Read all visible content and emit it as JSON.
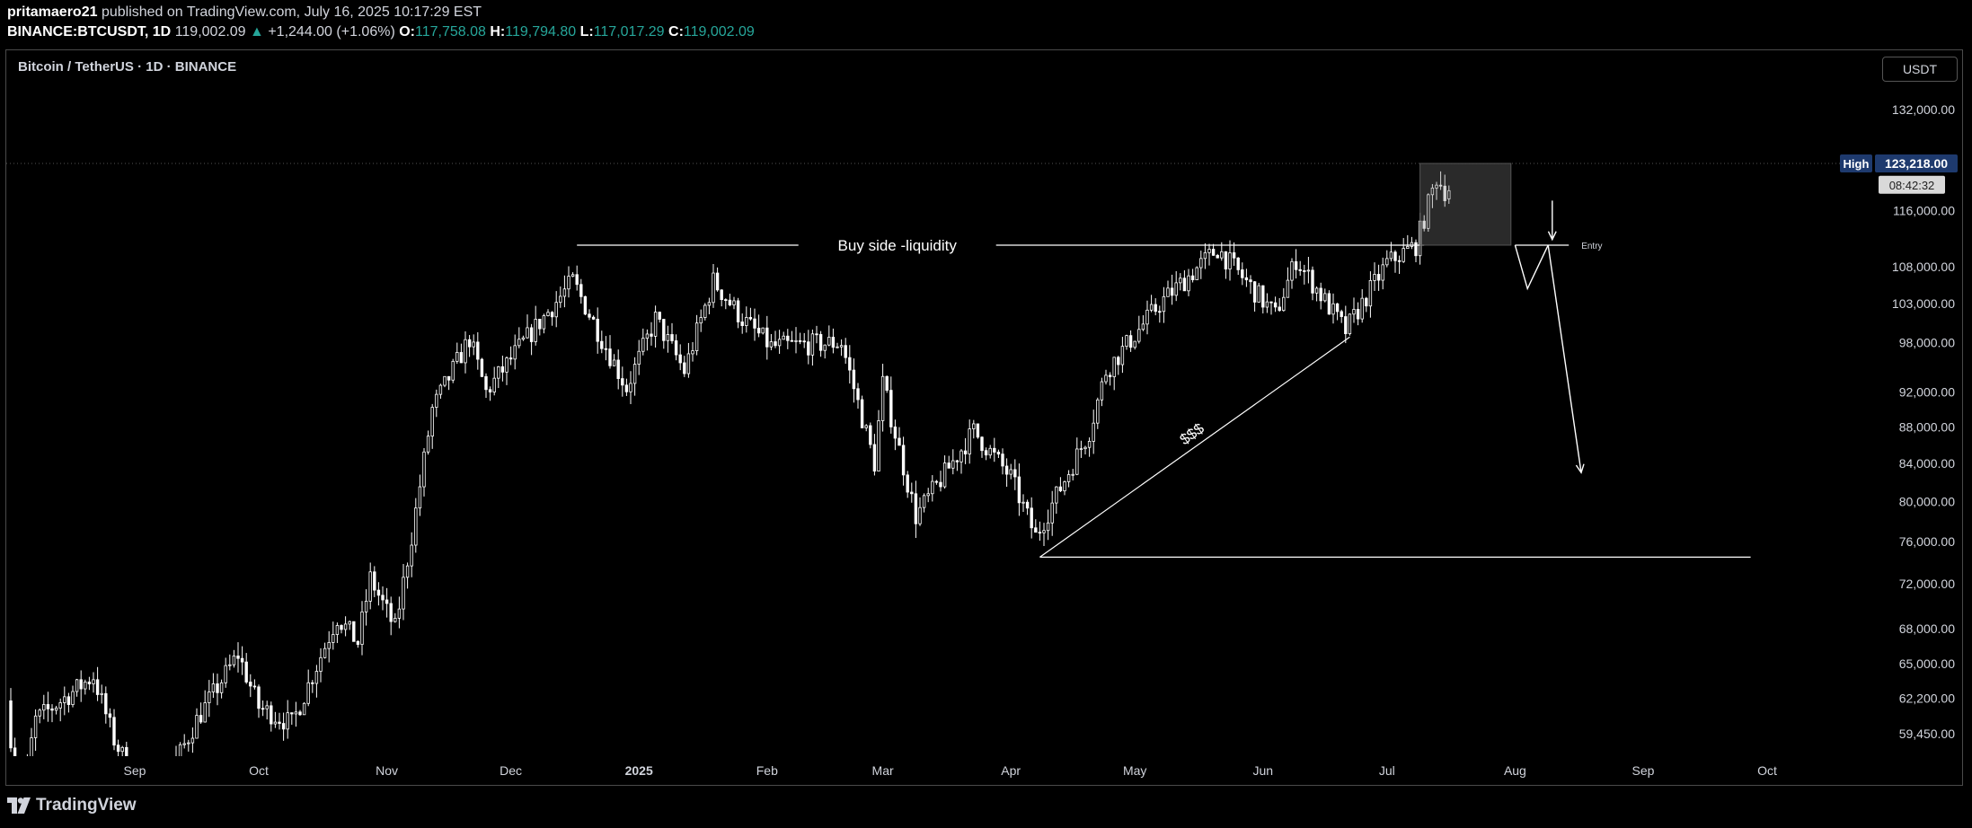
{
  "header": {
    "author": "pritamaero21",
    "published": " published on TradingView.com, July 16, 2025 10:17:29 EST",
    "symbol": "BINANCE:BTCUSDT, 1D",
    "last": "119,002.09",
    "change": "+1,244.00 (+1.06%)",
    "o_label": "O:",
    "o": "117,758.08",
    "h_label": "H:",
    "h": "119,794.80",
    "l_label": "L:",
    "l": "117,017.29",
    "c_label": "C:",
    "c": "119,002.09"
  },
  "symbol_title": "Bitcoin / TetherUS · 1D · BINANCE",
  "currency_button": "USDT",
  "footer": {
    "brand": "TradingView"
  },
  "colors": {
    "background": "#000000",
    "candle": "#ffffff",
    "up": "#26a69a",
    "badge_high": "#1e3a6e",
    "annotation": "#ffffff"
  },
  "chart_data": {
    "type": "candlestick",
    "scale": "log",
    "yticks": [
      132000,
      116000,
      108000,
      103000,
      98000,
      92000,
      88000,
      84000,
      80000,
      76000,
      72000,
      68000,
      65000,
      62200,
      59450
    ],
    "yticks_labels": [
      "132,000.00",
      "116,000.00",
      "108,000.00",
      "103,000.00",
      "98,000.00",
      "92,000.00",
      "88,000.00",
      "84,000.00",
      "80,000.00",
      "76,000.00",
      "72,000.00",
      "68,000.00",
      "65,000.00",
      "62,200.00",
      "59,450.00"
    ],
    "xticks": [
      {
        "label": "Sep",
        "date": "2024-09-01"
      },
      {
        "label": "Oct",
        "date": "2024-10-01"
      },
      {
        "label": "Nov",
        "date": "2024-11-01"
      },
      {
        "label": "Dec",
        "date": "2024-12-01"
      },
      {
        "label": "2025",
        "date": "2025-01-01",
        "bold": true
      },
      {
        "label": "Feb",
        "date": "2025-02-01"
      },
      {
        "label": "Mar",
        "date": "2025-03-01"
      },
      {
        "label": "Apr",
        "date": "2025-04-01"
      },
      {
        "label": "May",
        "date": "2025-05-01"
      },
      {
        "label": "Jun",
        "date": "2025-06-01"
      },
      {
        "label": "Jul",
        "date": "2025-07-01"
      },
      {
        "label": "Aug",
        "date": "2025-08-01"
      },
      {
        "label": "Sep",
        "date": "2025-09-01"
      },
      {
        "label": "Oct",
        "date": "2025-10-01"
      }
    ],
    "anchors": [
      [
        "2024-08-02",
        62000
      ],
      [
        "2024-08-05",
        54000
      ],
      [
        "2024-08-09",
        60500
      ],
      [
        "2024-08-23",
        64000
      ],
      [
        "2024-08-28",
        59000
      ],
      [
        "2024-09-06",
        53800
      ],
      [
        "2024-09-17",
        60500
      ],
      [
        "2024-09-27",
        65800
      ],
      [
        "2024-10-02",
        61500
      ],
      [
        "2024-10-10",
        60200
      ],
      [
        "2024-10-21",
        69000
      ],
      [
        "2024-10-26",
        66800
      ],
      [
        "2024-10-29",
        72500
      ],
      [
        "2024-11-04",
        68000
      ],
      [
        "2024-11-08",
        76500
      ],
      [
        "2024-11-13",
        90000
      ],
      [
        "2024-11-22",
        98500
      ],
      [
        "2024-11-26",
        92000
      ],
      [
        "2024-12-05",
        98000
      ],
      [
        "2024-12-17",
        106000
      ],
      [
        "2024-12-30",
        92500
      ],
      [
        "2025-01-06",
        101000
      ],
      [
        "2025-01-13",
        94500
      ],
      [
        "2025-01-20",
        106000
      ],
      [
        "2025-01-27",
        101000
      ],
      [
        "2025-02-03",
        97500
      ],
      [
        "2025-02-20",
        98000
      ],
      [
        "2025-02-28",
        84000
      ],
      [
        "2025-03-02",
        93000
      ],
      [
        "2025-03-10",
        78500
      ],
      [
        "2025-03-24",
        87500
      ],
      [
        "2025-04-02",
        82500
      ],
      [
        "2025-04-08",
        76500
      ],
      [
        "2025-04-21",
        87500
      ],
      [
        "2025-04-25",
        94500
      ],
      [
        "2025-05-08",
        103000
      ],
      [
        "2025-05-22",
        110500
      ],
      [
        "2025-06-05",
        101500
      ],
      [
        "2025-06-10",
        109000
      ],
      [
        "2025-06-22",
        99500
      ],
      [
        "2025-07-02",
        108500
      ],
      [
        "2025-07-09",
        111000
      ],
      [
        "2025-07-14",
        121000
      ],
      [
        "2025-07-16",
        119002
      ]
    ],
    "ohlc_last": {
      "date": "2025-07-16",
      "open": 117758.08,
      "high": 119794.8,
      "low": 117017.29,
      "close": 119002.09
    },
    "badges": [
      {
        "label": "High",
        "value": "123,218.00",
        "price": 123218
      },
      {
        "label": "",
        "value": "08:42:32",
        "price": 119900
      }
    ],
    "annotations": [
      {
        "type": "hline",
        "label": "Buy side -liquidity",
        "price": 111000,
        "from": "2024-12-17",
        "to": "2025-07-10"
      },
      {
        "type": "box",
        "from": "2025-07-09",
        "to": "2025-07-31",
        "top": 123218,
        "bottom": 111000
      },
      {
        "type": "trendline",
        "label": "$$$",
        "from": [
          "2025-04-08",
          74500
        ],
        "to": [
          "2025-06-22",
          98700
        ]
      },
      {
        "type": "hline",
        "price": 74500,
        "from": "2025-04-08",
        "to": "2025-09-27"
      },
      {
        "type": "hline",
        "label": "Entry",
        "price": 111000,
        "from": "2025-08-01",
        "to": "2025-08-14"
      },
      {
        "type": "arrow",
        "from": [
          "2025-08-10",
          117500
        ],
        "to": [
          "2025-08-10",
          111800
        ]
      },
      {
        "type": "path",
        "points": [
          [
            "2025-08-01",
            111000
          ],
          [
            "2025-08-04",
            105000
          ],
          [
            "2025-08-09",
            111000
          ]
        ]
      },
      {
        "type": "arrow",
        "from": [
          "2025-08-09",
          111000
        ],
        "to": [
          "2025-08-17",
          83000
        ]
      }
    ]
  }
}
